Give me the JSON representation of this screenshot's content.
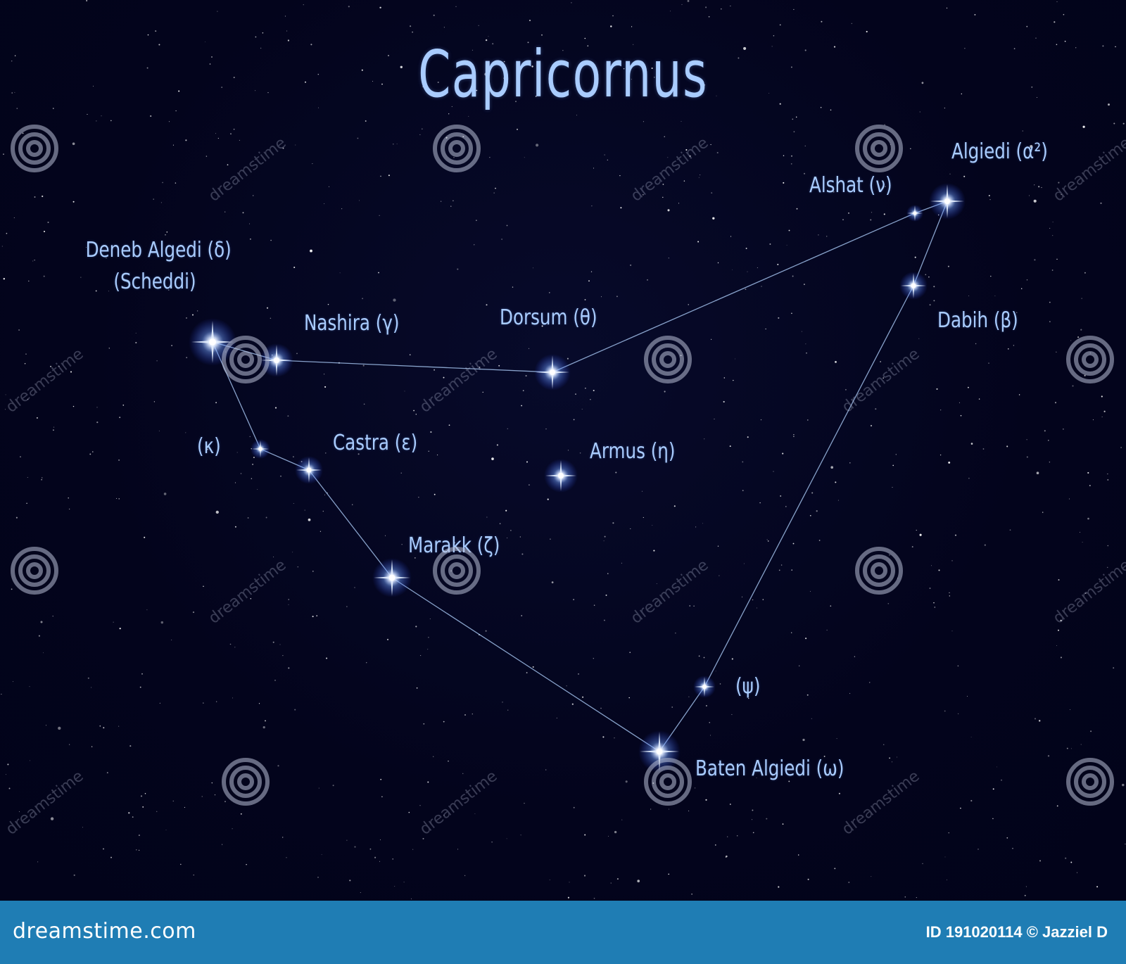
{
  "title": "Capricornus",
  "stars": [
    {
      "id": "deneb-algedi",
      "label_lines": [
        "Deneb Algedi (δ)",
        "(Scheddi)"
      ]
    },
    {
      "id": "nashira",
      "label_lines": [
        "Nashira (γ)"
      ]
    },
    {
      "id": "dorsum",
      "label_lines": [
        "Dorsum (θ)"
      ]
    },
    {
      "id": "alshat",
      "label_lines": [
        "Alshat (ν)"
      ]
    },
    {
      "id": "algiedi",
      "label_lines": [
        "Algiedi (α²)"
      ]
    },
    {
      "id": "dabih",
      "label_lines": [
        "Dabih (β)"
      ]
    },
    {
      "id": "kappa",
      "label_lines": [
        "(κ)"
      ]
    },
    {
      "id": "castra",
      "label_lines": [
        "Castra (ε)"
      ]
    },
    {
      "id": "armus",
      "label_lines": [
        "Armus (η)"
      ]
    },
    {
      "id": "marakk",
      "label_lines": [
        "Marakk (ζ)"
      ]
    },
    {
      "id": "psi",
      "label_lines": [
        "(ψ)"
      ]
    },
    {
      "id": "baten-algiedi",
      "label_lines": [
        "Baten Algiedi (ω)"
      ]
    }
  ],
  "watermark": {
    "site_text": "dreamstime",
    "footer_brand": "dreamstime.com",
    "footer_id": "ID 191020114 © Jazziel D"
  },
  "colors": {
    "sky": "#02031a",
    "label": "#a9ccff",
    "line": "#9fbde8",
    "footer": "#1f7db4"
  }
}
